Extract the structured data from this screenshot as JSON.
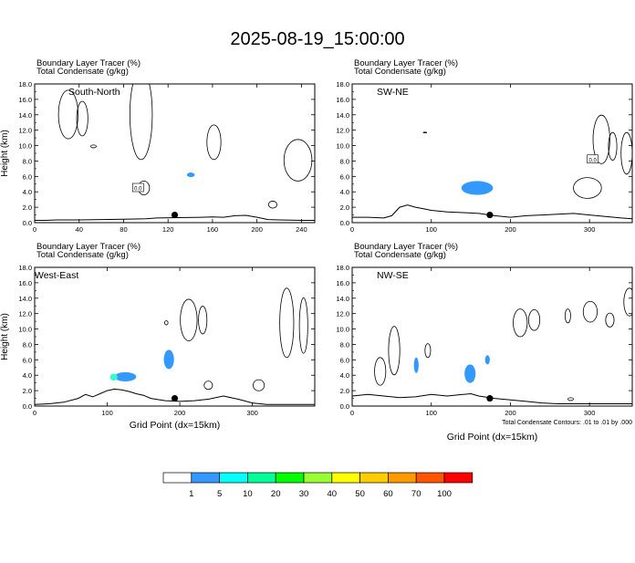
{
  "title": "2025-08-19_15:00:00",
  "colors": {
    "contour": "#000000",
    "tracer_low": "#3399ff",
    "tracer_mid": "#33ffcc",
    "marker": "#000000"
  },
  "chart_data": [
    {
      "type": "contour",
      "panel": "South-North",
      "header_line1": "Boundary Layer Tracer   (%)",
      "header_line2": "Total Condensate   (g/kg)",
      "ylabel": "Height (km)",
      "xlabel": "",
      "xlim": [
        0,
        252
      ],
      "ylim": [
        0,
        18
      ],
      "xticks": [
        0,
        40,
        80,
        120,
        160,
        200,
        240
      ],
      "yticks": [
        "0.0",
        "2.0",
        "4.0",
        "6.0",
        "8.0",
        "10.0",
        "12.0",
        "14.0",
        "16.0",
        "18.0"
      ],
      "contour_labels": [
        {
          "text": "0.0",
          "x": 93,
          "y": 4.5
        }
      ],
      "marker": {
        "x": 126,
        "y": 1.0
      },
      "terrain": [
        [
          0,
          0.3
        ],
        [
          10,
          0.3
        ],
        [
          20,
          0.35
        ],
        [
          40,
          0.35
        ],
        [
          60,
          0.4
        ],
        [
          80,
          0.45
        ],
        [
          100,
          0.5
        ],
        [
          110,
          0.6
        ],
        [
          130,
          0.65
        ],
        [
          150,
          0.7
        ],
        [
          160,
          0.75
        ],
        [
          170,
          0.7
        ],
        [
          180,
          0.9
        ],
        [
          190,
          0.95
        ],
        [
          200,
          0.7
        ],
        [
          210,
          0.4
        ],
        [
          220,
          0.35
        ],
        [
          240,
          0.3
        ],
        [
          252,
          0.3
        ]
      ],
      "tracer_blobs": [
        {
          "x": 137,
          "y": 5.9,
          "w": 7,
          "h": 0.6,
          "level": 1
        }
      ]
    },
    {
      "type": "contour",
      "panel": "SW-NE",
      "header_line1": "Boundary Layer Tracer   (%)",
      "header_line2": "Total Condensate   (g/kg)",
      "ylabel": "",
      "xlabel": "",
      "xlim": [
        0,
        354
      ],
      "ylim": [
        0,
        18
      ],
      "xticks": [
        0,
        100,
        200,
        300
      ],
      "yticks": [
        "0.0",
        "2.0",
        "4.0",
        "6.0",
        "8.0",
        "10.0",
        "12.0",
        "14.0",
        "16.0",
        "18.0"
      ],
      "contour_labels": [
        {
          "text": "0.0",
          "x": 304,
          "y": 8.2
        }
      ],
      "marker": {
        "x": 174,
        "y": 1.0
      },
      "terrain": [
        [
          0,
          0.7
        ],
        [
          20,
          0.7
        ],
        [
          40,
          0.6
        ],
        [
          50,
          0.9
        ],
        [
          60,
          2.0
        ],
        [
          70,
          2.3
        ],
        [
          80,
          2.0
        ],
        [
          90,
          1.8
        ],
        [
          100,
          1.6
        ],
        [
          120,
          1.4
        ],
        [
          140,
          1.3
        ],
        [
          160,
          1.2
        ],
        [
          180,
          0.9
        ],
        [
          200,
          0.7
        ],
        [
          220,
          0.9
        ],
        [
          240,
          1.0
        ],
        [
          260,
          1.1
        ],
        [
          280,
          1.2
        ],
        [
          300,
          1.0
        ],
        [
          320,
          0.8
        ],
        [
          340,
          0.6
        ],
        [
          354,
          0.5
        ]
      ],
      "tracer_blobs": [
        {
          "x": 138,
          "y": 3.6,
          "w": 40,
          "h": 1.8,
          "level": 1
        }
      ]
    },
    {
      "type": "contour",
      "panel": "West-East",
      "header_line1": "Boundary Layer Tracer   (%)",
      "header_line2": "Total Condensate   (g/kg)",
      "ylabel": "Height (km)",
      "xlabel": "Grid Point (dx=15km)",
      "xlim": [
        0,
        386
      ],
      "ylim": [
        0,
        18
      ],
      "xticks": [
        0,
        100,
        200,
        300
      ],
      "yticks": [
        "0.0",
        "2.0",
        "4.0",
        "6.0",
        "8.0",
        "10.0",
        "12.0",
        "14.0",
        "16.0",
        "18.0"
      ],
      "contour_labels": [],
      "marker": {
        "x": 193,
        "y": 1.0
      },
      "terrain": [
        [
          0,
          0.2
        ],
        [
          20,
          0.3
        ],
        [
          40,
          0.5
        ],
        [
          60,
          1.0
        ],
        [
          70,
          1.5
        ],
        [
          80,
          1.2
        ],
        [
          90,
          1.6
        ],
        [
          100,
          2.0
        ],
        [
          110,
          2.2
        ],
        [
          120,
          2.1
        ],
        [
          130,
          1.9
        ],
        [
          140,
          1.6
        ],
        [
          150,
          1.4
        ],
        [
          160,
          1.0
        ],
        [
          180,
          0.7
        ],
        [
          200,
          0.6
        ],
        [
          220,
          0.7
        ],
        [
          240,
          0.9
        ],
        [
          260,
          1.3
        ],
        [
          280,
          0.9
        ],
        [
          300,
          0.4
        ],
        [
          320,
          0.2
        ],
        [
          386,
          0.2
        ]
      ],
      "tracer_blobs": [
        {
          "x": 110,
          "y": 3.2,
          "w": 30,
          "h": 1.2,
          "level": 1
        },
        {
          "x": 104,
          "y": 3.3,
          "w": 10,
          "h": 0.9,
          "level": 2
        },
        {
          "x": 178,
          "y": 4.8,
          "w": 14,
          "h": 2.5,
          "level": 1
        }
      ]
    },
    {
      "type": "contour",
      "panel": "NW-SE",
      "header_line1": "Boundary Layer Tracer   (%)",
      "header_line2": "Total Condensate   (g/kg)",
      "ylabel": "",
      "xlabel": "Grid Point (dx=15km)",
      "footnote": "Total Condensate Contours: .01 to .01 by .000",
      "xlim": [
        0,
        354
      ],
      "ylim": [
        0,
        18
      ],
      "xticks": [
        0,
        100,
        200,
        300
      ],
      "yticks": [
        "0.0",
        "2.0",
        "4.0",
        "6.0",
        "8.0",
        "10.0",
        "12.0",
        "14.0",
        "16.0",
        "18.0"
      ],
      "contour_labels": [],
      "marker": {
        "x": 174,
        "y": 1.0
      },
      "terrain": [
        [
          0,
          1.3
        ],
        [
          20,
          1.5
        ],
        [
          40,
          1.3
        ],
        [
          60,
          1.1
        ],
        [
          80,
          1.2
        ],
        [
          100,
          1.5
        ],
        [
          120,
          1.3
        ],
        [
          140,
          1.5
        ],
        [
          150,
          1.6
        ],
        [
          160,
          1.3
        ],
        [
          180,
          1.0
        ],
        [
          200,
          0.8
        ],
        [
          220,
          0.6
        ],
        [
          240,
          0.4
        ],
        [
          260,
          0.3
        ],
        [
          300,
          0.3
        ],
        [
          354,
          0.3
        ]
      ],
      "tracer_blobs": [
        {
          "x": 78,
          "y": 4.3,
          "w": 6,
          "h": 2.0,
          "level": 1
        },
        {
          "x": 142,
          "y": 3.0,
          "w": 14,
          "h": 2.4,
          "level": 1
        },
        {
          "x": 168,
          "y": 5.4,
          "w": 6,
          "h": 1.2,
          "level": 1
        }
      ]
    }
  ],
  "colorbar": {
    "colors": [
      "#ffffff",
      "#3399ff",
      "#00ffff",
      "#00ff99",
      "#00ff00",
      "#99ff33",
      "#ffff00",
      "#ffcc00",
      "#ff9900",
      "#ff5500",
      "#ff0000"
    ],
    "labels": [
      "1",
      "5",
      "10",
      "20",
      "30",
      "40",
      "50",
      "60",
      "70",
      "100"
    ]
  }
}
